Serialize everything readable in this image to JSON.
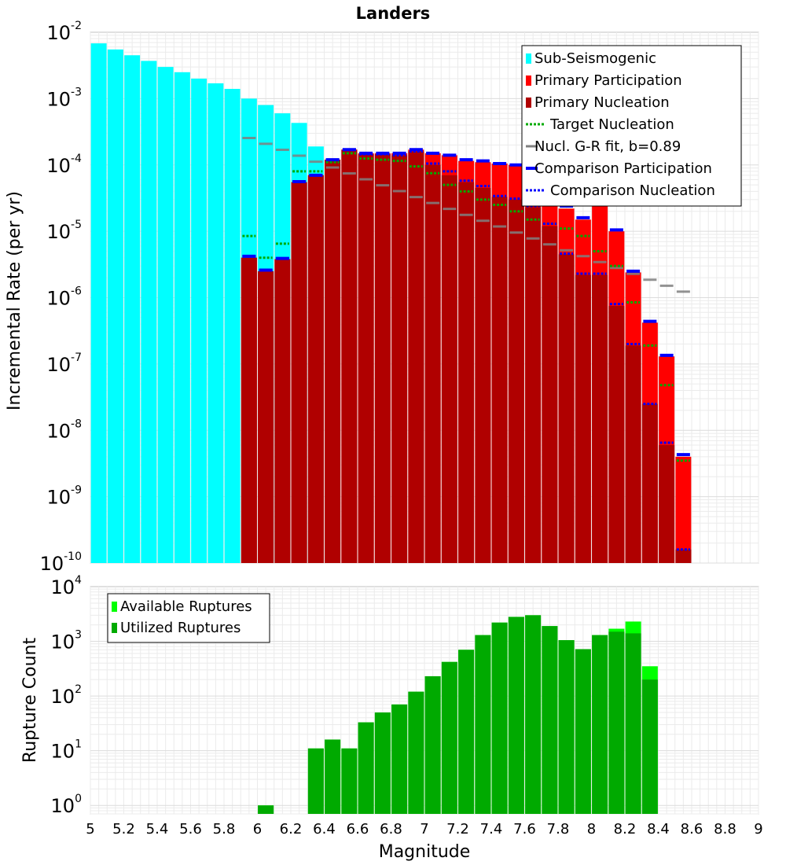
{
  "chart_data": [
    {
      "type": "bar",
      "title": "Landers",
      "ylabel": "Incremental Rate (per yr)",
      "xlim": [
        5,
        9
      ],
      "ylim": [
        1e-10,
        0.01
      ],
      "yscale": "log",
      "y_ticks": [
        {
          "base": "10",
          "exp": "-10"
        },
        {
          "base": "10",
          "exp": "-9"
        },
        {
          "base": "10",
          "exp": "-8"
        },
        {
          "base": "10",
          "exp": "-7"
        },
        {
          "base": "10",
          "exp": "-6"
        },
        {
          "base": "10",
          "exp": "-5"
        },
        {
          "base": "10",
          "exp": "-4"
        },
        {
          "base": "10",
          "exp": "-3"
        },
        {
          "base": "10",
          "exp": "-2"
        }
      ],
      "grid": true,
      "legend_position": "top-right",
      "legend": [
        {
          "label": "Sub-Seismogenic",
          "color": "#00ffff",
          "style": "bar"
        },
        {
          "label": "Primary Participation",
          "color": "#ff0000",
          "style": "bar"
        },
        {
          "label": "Primary Nucleation",
          "color": "#b00000",
          "style": "bar"
        },
        {
          "label": "Target Nucleation",
          "color": "#00aa00",
          "style": "dotted"
        },
        {
          "label": "Nucl. G-R fit, b=0.89",
          "color": "#808080",
          "style": "line"
        },
        {
          "label": "Comparison Participation",
          "color": "#0000ff",
          "style": "thick"
        },
        {
          "label": "Comparison Nucleation",
          "color": "#0000ff",
          "style": "dotted"
        }
      ],
      "series": [
        {
          "name": "Sub-Seismogenic",
          "color": "#00ffff",
          "x": [
            5.05,
            5.15,
            5.25,
            5.35,
            5.45,
            5.55,
            5.65,
            5.75,
            5.85,
            5.95,
            6.05,
            6.15,
            6.25,
            6.35
          ],
          "values": [
            0.0068,
            0.0055,
            0.0045,
            0.0037,
            0.003,
            0.0025,
            0.002,
            0.0017,
            0.0014,
            0.001,
            0.0008,
            0.0006,
            0.00043,
            0.00019
          ]
        },
        {
          "name": "Primary Participation",
          "color": "#ff0000",
          "x": [
            5.95,
            6.05,
            6.15,
            6.25,
            6.35,
            6.45,
            6.55,
            6.65,
            6.75,
            6.85,
            6.95,
            7.05,
            7.15,
            7.25,
            7.35,
            7.45,
            7.55,
            7.65,
            7.75,
            7.85,
            7.95,
            8.05,
            8.15,
            8.25,
            8.35,
            8.45,
            8.55
          ],
          "values": [
            4e-06,
            2.5e-06,
            3.8e-06,
            5.5e-05,
            7e-05,
            0.00012,
            0.00017,
            0.00015,
            0.00015,
            0.00015,
            0.00017,
            0.00015,
            0.00014,
            0.000115,
            0.00011,
            0.000105,
            0.0001,
            8.5e-05,
            4.5e-05,
            2.2e-05,
            1.5e-05,
            3e-05,
            1e-05,
            2.4e-06,
            4.2e-07,
            1.3e-07,
            4e-09
          ]
        },
        {
          "name": "Primary Nucleation",
          "color": "#b00000",
          "x": [
            5.95,
            6.05,
            6.15,
            6.25,
            6.35,
            6.45,
            6.55,
            6.65,
            6.75,
            6.85,
            6.95,
            7.05,
            7.15,
            7.25,
            7.35,
            7.45,
            7.55,
            7.65,
            7.75,
            7.85,
            7.95,
            8.05,
            8.15,
            8.25,
            8.35,
            8.45,
            8.55
          ],
          "values": [
            4e-06,
            2.5e-06,
            3.8e-06,
            5.5e-05,
            7e-05,
            0.00012,
            0.00017,
            0.000145,
            0.000145,
            0.00014,
            0.00016,
            0.0001,
            7e-05,
            5.5e-05,
            4.5e-05,
            3.3e-05,
            3e-05,
            2.3e-05,
            1.2e-05,
            4.5e-06,
            2.2e-06,
            2.2e-06,
            7.5e-07,
            1.9e-07,
            2.5e-08,
            6e-09,
            1.6e-10
          ]
        },
        {
          "name": "Target Nucleation",
          "color": "#00aa00",
          "x": [
            5.95,
            6.05,
            6.15,
            6.25,
            6.35,
            6.45,
            6.55,
            6.65,
            6.75,
            6.85,
            6.95,
            7.05,
            7.15,
            7.25,
            7.35,
            7.45,
            7.55,
            7.65,
            7.75,
            7.85,
            7.95,
            8.05,
            8.15,
            8.25,
            8.35,
            8.45,
            8.55
          ],
          "values": [
            8.5e-06,
            4e-06,
            6.5e-06,
            8e-05,
            8e-05,
            0.00011,
            0.00015,
            0.000125,
            0.00012,
            0.000115,
            9.5e-05,
            7.5e-05,
            5e-05,
            4e-05,
            3e-05,
            2.5e-05,
            2e-05,
            1.5e-05,
            1.3e-05,
            1.1e-05,
            8.5e-06,
            5e-06,
            3e-06,
            8.5e-07,
            1.9e-07,
            4.8e-08,
            3.5e-09
          ]
        },
        {
          "name": "Nucl. G-R fit, b=0.89",
          "color": "#808080",
          "x": [
            5.95,
            6.05,
            6.15,
            6.25,
            6.35,
            6.45,
            6.55,
            6.65,
            6.75,
            6.85,
            6.95,
            7.05,
            7.15,
            7.25,
            7.35,
            7.45,
            7.55,
            7.65,
            7.75,
            7.85,
            7.95,
            8.05,
            8.15,
            8.25,
            8.35,
            8.45,
            8.55
          ],
          "values": [
            0.000255,
            0.000208,
            0.000169,
            0.000138,
            0.000112,
            9.15e-05,
            7.45e-05,
            6.07e-05,
            4.94e-05,
            4.03e-05,
            3.28e-05,
            2.67e-05,
            2.18e-05,
            1.77e-05,
            1.44e-05,
            1.18e-05,
            9.58e-06,
            7.8e-06,
            6.36e-06,
            5.18e-06,
            4.22e-06,
            3.44e-06,
            2.8e-06,
            2.28e-06,
            1.86e-06,
            1.51e-06,
            1.23e-06
          ]
        },
        {
          "name": "Comparison Participation",
          "color": "#0000ff",
          "x": [
            5.95,
            6.05,
            6.15,
            6.25,
            6.35,
            6.45,
            6.55,
            6.65,
            6.75,
            6.85,
            6.95,
            7.05,
            7.15,
            7.25,
            7.35,
            7.45,
            7.55,
            7.65,
            7.75,
            7.85,
            7.95,
            8.05,
            8.15,
            8.25,
            8.35,
            8.45,
            8.55
          ],
          "values": [
            4.2e-06,
            2.6e-06,
            3.9e-06,
            5.6e-05,
            7e-05,
            0.00012,
            0.00017,
            0.00015,
            0.00015,
            0.00015,
            0.00017,
            0.00015,
            0.00014,
            0.00012,
            0.000115,
            0.000105,
            0.0001,
            9e-05,
            4.8e-05,
            2.4e-05,
            1.6e-05,
            3e-05,
            1.05e-05,
            2.5e-06,
            4.4e-07,
            1.35e-07,
            4.3e-09
          ]
        },
        {
          "name": "Comparison Nucleation",
          "color": "#0000ff",
          "x": [
            5.95,
            6.05,
            6.15,
            6.25,
            6.35,
            6.45,
            6.55,
            6.65,
            6.75,
            6.85,
            6.95,
            7.05,
            7.15,
            7.25,
            7.35,
            7.45,
            7.55,
            7.65,
            7.75,
            7.85,
            7.95,
            8.05,
            8.15,
            8.25,
            8.35,
            8.45,
            8.55
          ],
          "values": [
            4.2e-06,
            2.6e-06,
            3.9e-06,
            5.6e-05,
            7e-05,
            0.00012,
            0.00017,
            0.000145,
            0.000145,
            0.00014,
            0.00016,
            0.000105,
            8e-05,
            5.8e-05,
            4.8e-05,
            3.4e-05,
            3.1e-05,
            2.4e-05,
            1.3e-05,
            4.6e-06,
            2.3e-06,
            2.3e-06,
            8e-07,
            2e-07,
            2.5e-08,
            6.5e-09,
            1.6e-10
          ]
        }
      ]
    },
    {
      "type": "bar",
      "title": "",
      "xlabel": "Magnitude",
      "ylabel": "Rupture Count",
      "xlim": [
        5,
        9
      ],
      "ylim": [
        0.7,
        10000
      ],
      "yscale": "log",
      "y_ticks": [
        {
          "base": "10",
          "exp": "0"
        },
        {
          "base": "10",
          "exp": "1"
        },
        {
          "base": "10",
          "exp": "2"
        },
        {
          "base": "10",
          "exp": "3"
        },
        {
          "base": "10",
          "exp": "4"
        }
      ],
      "x_ticks": [
        "5",
        "5.2",
        "5.4",
        "5.6",
        "5.8",
        "6",
        "6.2",
        "6.4",
        "6.6",
        "6.8",
        "7",
        "7.2",
        "7.4",
        "7.6",
        "7.8",
        "8",
        "8.2",
        "8.4",
        "8.6",
        "8.8",
        "9"
      ],
      "grid": true,
      "legend_position": "top-left",
      "legend": [
        {
          "label": "Available Ruptures",
          "color": "#00ff00",
          "style": "bar"
        },
        {
          "label": "Utilized Ruptures",
          "color": "#00aa00",
          "style": "bar"
        }
      ],
      "series": [
        {
          "name": "Available Ruptures",
          "color": "#00ff00",
          "x": [
            6.05,
            6.35,
            6.45,
            6.55,
            6.65,
            6.75,
            6.85,
            6.95,
            7.05,
            7.15,
            7.25,
            7.35,
            7.45,
            7.55,
            7.65,
            7.75,
            7.85,
            7.95,
            8.05,
            8.15,
            8.25,
            8.35
          ],
          "values": [
            1,
            11,
            16,
            11,
            33,
            50,
            70,
            120,
            230,
            420,
            700,
            1300,
            2200,
            2800,
            3000,
            1900,
            1050,
            720,
            1300,
            1700,
            2300,
            350
          ]
        },
        {
          "name": "Utilized Ruptures",
          "color": "#00aa00",
          "x": [
            6.05,
            6.35,
            6.45,
            6.55,
            6.65,
            6.75,
            6.85,
            6.95,
            7.05,
            7.15,
            7.25,
            7.35,
            7.45,
            7.55,
            7.65,
            7.75,
            7.85,
            7.95,
            8.05,
            8.15,
            8.25,
            8.35
          ],
          "values": [
            1,
            11,
            16,
            11,
            33,
            50,
            70,
            120,
            230,
            420,
            700,
            1300,
            2200,
            2800,
            3000,
            1900,
            1050,
            720,
            1300,
            1500,
            1400,
            200
          ]
        }
      ]
    }
  ]
}
